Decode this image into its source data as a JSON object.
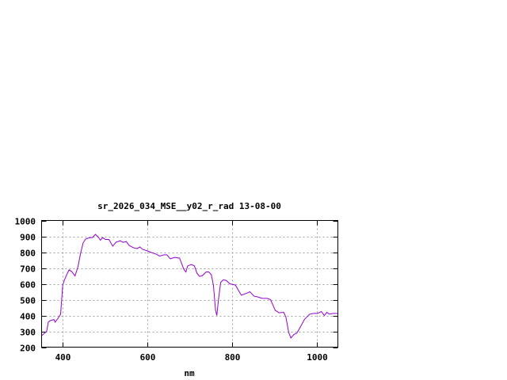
{
  "chart_data": {
    "type": "line",
    "title": "sr_2026_034_MSE__y02_r_rad 13-08-00",
    "xlabel": "nm",
    "ylabel": "",
    "xlim": [
      350,
      1050
    ],
    "ylim": [
      200,
      1000
    ],
    "xticks": [
      400,
      600,
      800,
      1000
    ],
    "yticks": [
      200,
      300,
      400,
      500,
      600,
      700,
      800,
      900,
      1000
    ],
    "grid": true,
    "line_color": "#9400d3",
    "series": [
      {
        "x": [
          350,
          357,
          362,
          366,
          370,
          376,
          379,
          382,
          389,
          395,
          400,
          404,
          411,
          415,
          421,
          429,
          436,
          442,
          448,
          454,
          464,
          470,
          477,
          484,
          489,
          494,
          501,
          509,
          518,
          526,
          536,
          542,
          550,
          557,
          567,
          576,
          582,
          589,
          600,
          607,
          620,
          629,
          639,
          646,
          654,
          664,
          676,
          686,
          691,
          695,
          704,
          711,
          717,
          723,
          729,
          739,
          745,
          751,
          756,
          761,
          764,
          768,
          773,
          779,
          786,
          795,
          808,
          817,
          822,
          836,
          842,
          852,
          861,
          871,
          883,
          891,
          902,
          911,
          922,
          927,
          934,
          939,
          946,
          953,
          961,
          971,
          983,
          993,
          1002,
          1011,
          1018,
          1024,
          1030,
          1039,
          1049
        ],
        "y": [
          272,
          288,
          300,
          358,
          367,
          372,
          375,
          358,
          383,
          408,
          592,
          625,
          667,
          688,
          678,
          650,
          708,
          792,
          858,
          883,
          892,
          892,
          912,
          895,
          875,
          892,
          880,
          880,
          838,
          863,
          872,
          862,
          867,
          842,
          828,
          822,
          833,
          817,
          808,
          800,
          788,
          775,
          783,
          783,
          758,
          767,
          762,
          692,
          675,
          712,
          722,
          713,
          667,
          647,
          650,
          675,
          675,
          658,
          592,
          433,
          400,
          500,
          608,
          625,
          622,
          600,
          592,
          550,
          528,
          542,
          550,
          522,
          517,
          508,
          508,
          500,
          433,
          417,
          420,
          392,
          292,
          258,
          280,
          288,
          325,
          375,
          408,
          413,
          413,
          425,
          400,
          420,
          408,
          413,
          413
        ]
      }
    ]
  }
}
